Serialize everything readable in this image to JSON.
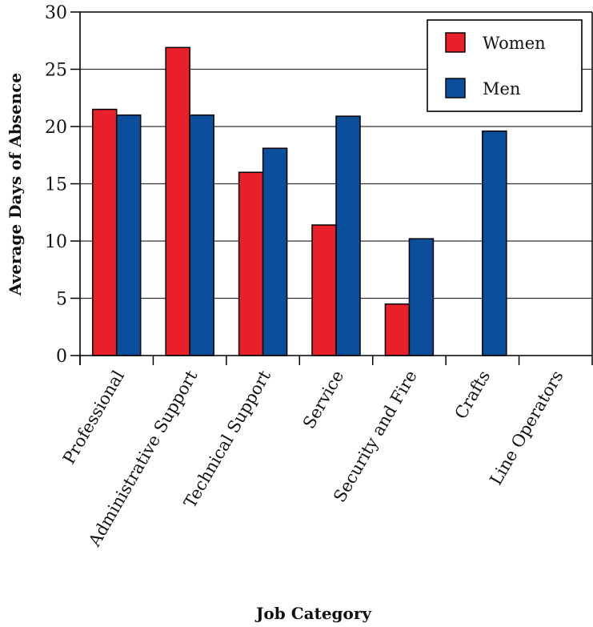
{
  "chart_data": {
    "type": "bar",
    "title": "",
    "xlabel": "Job Category",
    "ylabel": "Average Days of Absence",
    "ylim": [
      0,
      30
    ],
    "yticks": [
      0,
      5,
      10,
      15,
      20,
      25,
      30
    ],
    "grid": true,
    "legend_position": "top-right",
    "categories": [
      "Professional",
      "Administrative Support",
      "Technical Support",
      "Service",
      "Security and Fire",
      "Crafts",
      "Line Operators"
    ],
    "series": [
      {
        "name": "Women",
        "color": "#e8202a",
        "values": [
          21.5,
          26.9,
          16.0,
          11.4,
          4.5,
          0,
          0
        ]
      },
      {
        "name": "Men",
        "color": "#0b4f9c",
        "values": [
          21.0,
          21.0,
          18.1,
          20.9,
          10.2,
          19.6,
          0
        ]
      }
    ]
  }
}
